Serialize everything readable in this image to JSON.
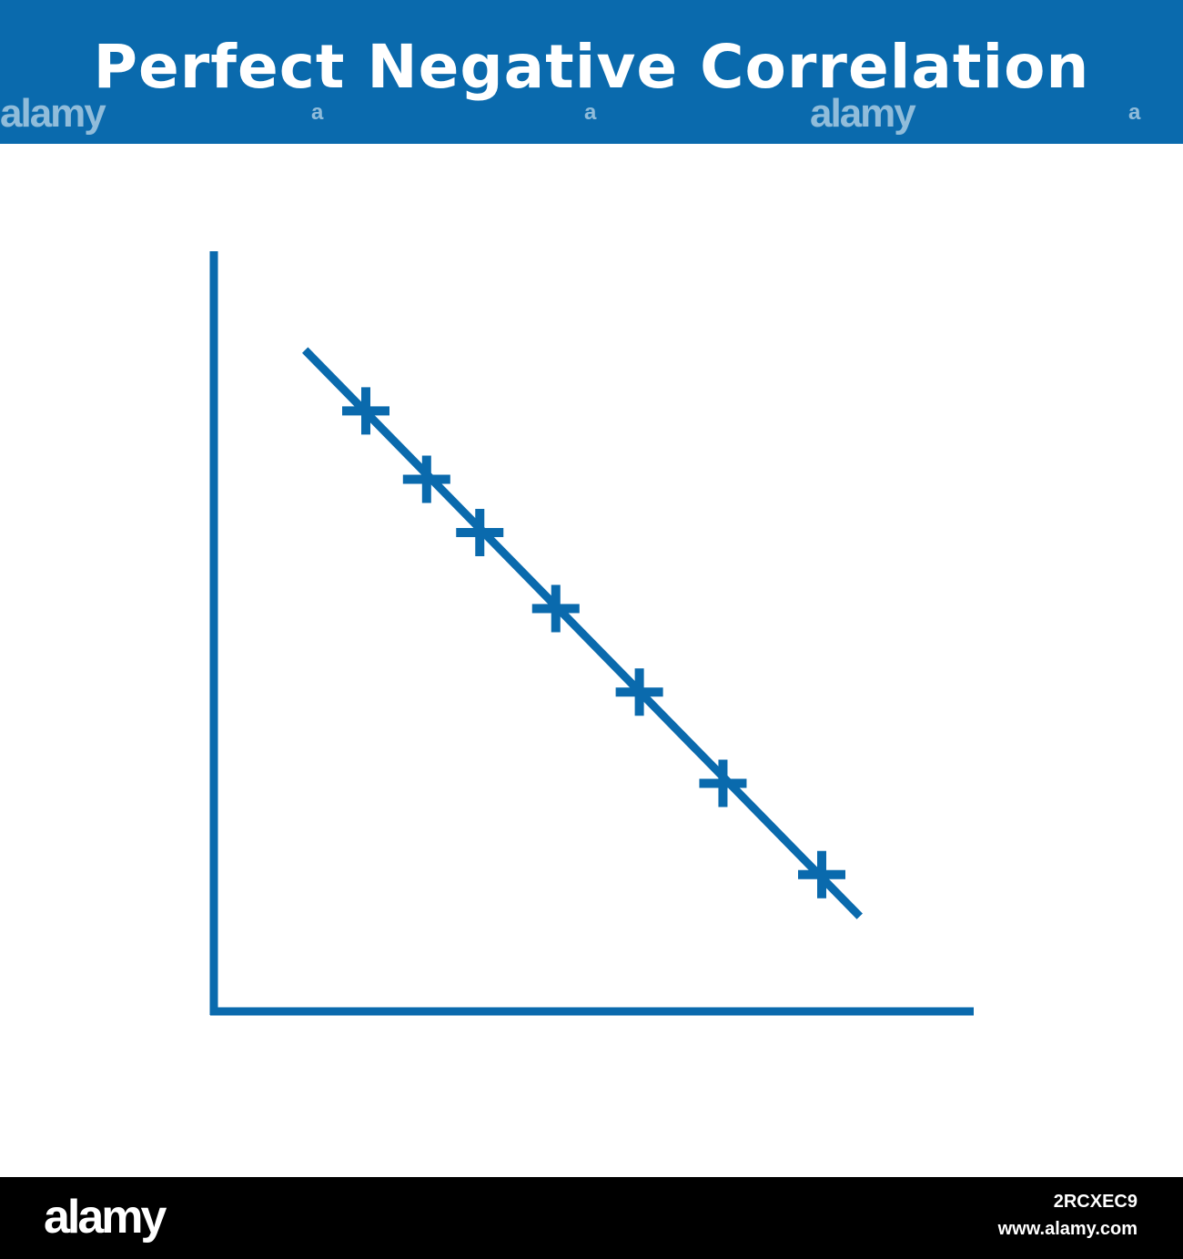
{
  "header": {
    "title": "Perfect Negative Correlation",
    "background_color": "#0a6aad"
  },
  "watermarks": {
    "logo_text": "alamy",
    "letter": "a"
  },
  "chart_data": {
    "type": "scatter",
    "title": "Perfect Negative Correlation",
    "xlabel": "",
    "ylabel": "",
    "axis_ticks": "none",
    "grid": false,
    "color": "#0a6aad",
    "marker": "plus",
    "xlim": [
      0,
      10
    ],
    "ylim": [
      0,
      10
    ],
    "points": [
      {
        "x": 2.0,
        "y": 7.9
      },
      {
        "x": 2.8,
        "y": 7.0
      },
      {
        "x": 3.5,
        "y": 6.3
      },
      {
        "x": 4.5,
        "y": 5.3
      },
      {
        "x": 5.6,
        "y": 4.2
      },
      {
        "x": 6.7,
        "y": 3.0
      },
      {
        "x": 8.0,
        "y": 1.8
      }
    ],
    "trend_line": {
      "x": [
        1.2,
        8.5
      ],
      "y": [
        8.7,
        1.25
      ]
    }
  },
  "footer": {
    "logo": "alamy",
    "image_id": "2RCXEC9",
    "url": "www.alamy.com"
  }
}
